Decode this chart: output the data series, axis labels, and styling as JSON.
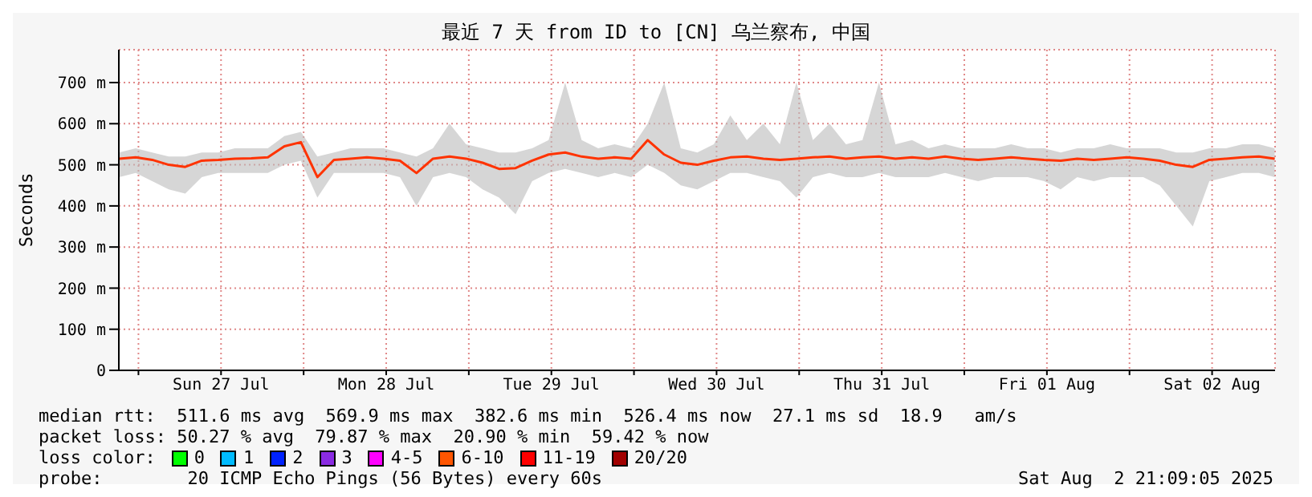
{
  "chart_data": {
    "type": "line",
    "title": "最近 7 天 from ID to [CN] 乌兰察布, 中国",
    "ylabel": "Seconds",
    "x": [
      "2025-07-26T21:12",
      "2025-07-26T23:36",
      "2025-07-27T02:00",
      "2025-07-27T04:24",
      "2025-07-27T06:48",
      "2025-07-27T09:12",
      "2025-07-27T11:36",
      "2025-07-27T14:00",
      "2025-07-27T16:24",
      "2025-07-27T18:48",
      "2025-07-27T21:12",
      "2025-07-27T23:36",
      "2025-07-28T02:00",
      "2025-07-28T04:24",
      "2025-07-28T06:48",
      "2025-07-28T09:12",
      "2025-07-28T11:36",
      "2025-07-28T14:00",
      "2025-07-28T16:24",
      "2025-07-28T18:48",
      "2025-07-28T21:12",
      "2025-07-28T23:36",
      "2025-07-29T02:00",
      "2025-07-29T04:24",
      "2025-07-29T06:48",
      "2025-07-29T09:12",
      "2025-07-29T11:36",
      "2025-07-29T14:00",
      "2025-07-29T16:24",
      "2025-07-29T18:48",
      "2025-07-29T21:12",
      "2025-07-29T23:36",
      "2025-07-30T02:00",
      "2025-07-30T04:24",
      "2025-07-30T06:48",
      "2025-07-30T09:12",
      "2025-07-30T11:36",
      "2025-07-30T14:00",
      "2025-07-30T16:24",
      "2025-07-30T18:48",
      "2025-07-30T21:12",
      "2025-07-30T23:36",
      "2025-07-31T02:00",
      "2025-07-31T04:24",
      "2025-07-31T06:48",
      "2025-07-31T09:12",
      "2025-07-31T11:36",
      "2025-07-31T14:00",
      "2025-07-31T16:24",
      "2025-07-31T18:48",
      "2025-07-31T21:12",
      "2025-07-31T23:36",
      "2025-08-01T02:00",
      "2025-08-01T04:24",
      "2025-08-01T06:48",
      "2025-08-01T09:12",
      "2025-08-01T11:36",
      "2025-08-01T14:00",
      "2025-08-01T16:24",
      "2025-08-01T18:48",
      "2025-08-01T21:12",
      "2025-08-01T23:36",
      "2025-08-02T02:00",
      "2025-08-02T04:24",
      "2025-08-02T06:48",
      "2025-08-02T09:12",
      "2025-08-02T11:36",
      "2025-08-02T14:00",
      "2025-08-02T16:24",
      "2025-08-02T18:48",
      "2025-08-02T21:06"
    ],
    "series": [
      {
        "color": "#ff3300",
        "values": [
          515,
          518,
          512,
          500,
          495,
          510,
          512,
          515,
          516,
          518,
          545,
          555,
          470,
          512,
          515,
          518,
          515,
          510,
          480,
          515,
          520,
          515,
          505,
          490,
          492,
          510,
          525,
          530,
          520,
          515,
          518,
          515,
          560,
          525,
          505,
          500,
          510,
          518,
          520,
          515,
          512,
          515,
          518,
          520,
          515,
          518,
          520,
          515,
          518,
          515,
          520,
          515,
          512,
          515,
          518,
          515,
          512,
          510,
          515,
          512,
          515,
          518,
          515,
          510,
          500,
          495,
          512,
          515,
          518,
          520,
          515
        ],
        "lower": [
          470,
          480,
          460,
          440,
          430,
          470,
          480,
          480,
          480,
          480,
          500,
          510,
          420,
          480,
          480,
          480,
          480,
          470,
          400,
          470,
          480,
          470,
          440,
          420,
          380,
          460,
          480,
          490,
          480,
          470,
          480,
          470,
          500,
          480,
          450,
          440,
          460,
          480,
          480,
          470,
          460,
          420,
          470,
          480,
          470,
          470,
          480,
          470,
          470,
          470,
          480,
          470,
          460,
          470,
          470,
          470,
          460,
          440,
          470,
          460,
          470,
          470,
          470,
          450,
          400,
          350,
          460,
          470,
          480,
          480,
          470
        ],
        "upper": [
          530,
          540,
          530,
          520,
          520,
          530,
          530,
          540,
          540,
          540,
          570,
          580,
          520,
          530,
          540,
          540,
          540,
          530,
          520,
          540,
          600,
          550,
          540,
          530,
          530,
          540,
          560,
          700,
          560,
          540,
          550,
          540,
          600,
          700,
          540,
          530,
          550,
          620,
          560,
          600,
          550,
          700,
          560,
          600,
          550,
          560,
          700,
          550,
          560,
          540,
          550,
          540,
          540,
          540,
          550,
          540,
          540,
          530,
          540,
          540,
          550,
          540,
          540,
          540,
          530,
          530,
          540,
          540,
          550,
          550,
          540
        ]
      }
    ],
    "xlim": [
      "2025-07-26T21:09",
      "2025-08-02T21:09"
    ],
    "xticks": [
      {
        "value": "2025-07-27",
        "label": null
      },
      {
        "value": "2025-07-27T12:00",
        "label": "Sun 27 Jul"
      },
      {
        "value": "2025-07-28",
        "label": null
      },
      {
        "value": "2025-07-28T12:00",
        "label": "Mon 28 Jul"
      },
      {
        "value": "2025-07-29",
        "label": null
      },
      {
        "value": "2025-07-29T12:00",
        "label": "Tue 29 Jul"
      },
      {
        "value": "2025-07-30",
        "label": null
      },
      {
        "value": "2025-07-30T12:00",
        "label": "Wed 30 Jul"
      },
      {
        "value": "2025-07-31",
        "label": null
      },
      {
        "value": "2025-07-31T12:00",
        "label": "Thu 31 Jul"
      },
      {
        "value": "2025-08-01",
        "label": null
      },
      {
        "value": "2025-08-01T12:00",
        "label": "Fri 01 Aug"
      },
      {
        "value": "2025-08-02",
        "label": null
      },
      {
        "value": "2025-08-02T12:00",
        "label": "Sat 02 Aug"
      }
    ],
    "ylim": [
      0,
      780
    ],
    "yticks": [
      0,
      {
        "value": 100,
        "label": "100 m"
      },
      {
        "value": 200,
        "label": "200 m"
      },
      {
        "value": 300,
        "label": "300 m"
      },
      {
        "value": 400,
        "label": "400 m"
      },
      {
        "value": 500,
        "label": "500 m"
      },
      {
        "value": 600,
        "label": "600 m"
      },
      {
        "value": 700,
        "label": "700 m"
      }
    ],
    "grid": true,
    "marker": "none",
    "line_style": "solid",
    "annotations": [
      "median rtt:  511.6 ms avg  569.9 ms max  382.6 ms min  526.4 ms now  27.1 ms sd  18.9   am/s",
      "packet loss: 50.27 % avg  79.87 % max  20.90 % min  59.42 % now",
      "loss color:",
      "0",
      "1",
      "2",
      "3",
      "4-5",
      "6-10",
      "11-19",
      "20/20",
      "probe:        20 ICMP Echo Pings (56 Bytes) every 60s",
      "Sat Aug  2 21:09:05 2025"
    ]
  }
}
